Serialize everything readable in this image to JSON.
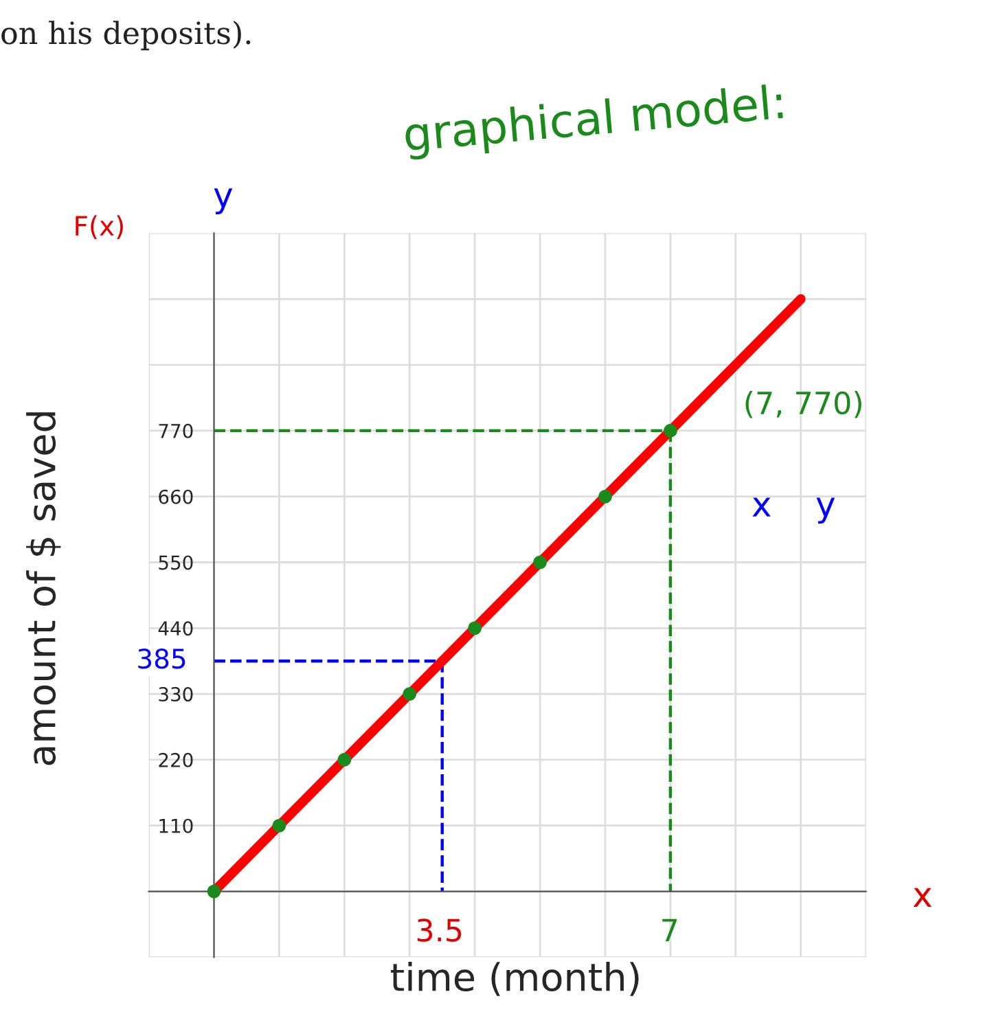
{
  "chart_data": {
    "type": "line",
    "xlabel": "time (month)",
    "ylabel": "amount of $ saved",
    "annotations": [
      "on his deposits).",
      "graphical model:",
      "F(x)",
      "y",
      "x",
      "x    y",
      "(7, 770)",
      "3.5",
      "7"
    ],
    "ref_lines": [
      {
        "axis": "y",
        "value": 770,
        "color": "#1a8a1a",
        "line_style": "dashed"
      },
      {
        "axis": "y",
        "value": 385,
        "label": "385",
        "color": "#0000ff",
        "line_style": "dashed"
      }
    ],
    "categories": [
      null,
      null,
      null,
      null,
      null,
      null,
      null,
      null,
      null,
      null
    ],
    "series": [
      {
        "color": "#ff0000",
        "values": [
          0,
          110,
          220,
          330,
          440,
          550,
          660,
          770,
          880,
          990
        ],
        "line_style": "solid"
      },
      {
        "type": "scatter",
        "color": "#1a8a1a",
        "values": [
          0,
          110,
          220,
          330,
          440,
          550,
          660,
          770,
          null,
          null
        ],
        "marker": "circle"
      }
    ],
    "ylim": [
      -110,
      1100
    ],
    "yticks": [
      {
        "value": -110,
        "label": null
      },
      {
        "value": 0,
        "label": null
      },
      110,
      220,
      330,
      440,
      550,
      660,
      770,
      {
        "value": 880,
        "label": null
      },
      {
        "value": 990,
        "label": null
      },
      {
        "value": 1100,
        "label": null
      }
    ],
    "tick_labels": "y",
    "grid": true
  }
}
